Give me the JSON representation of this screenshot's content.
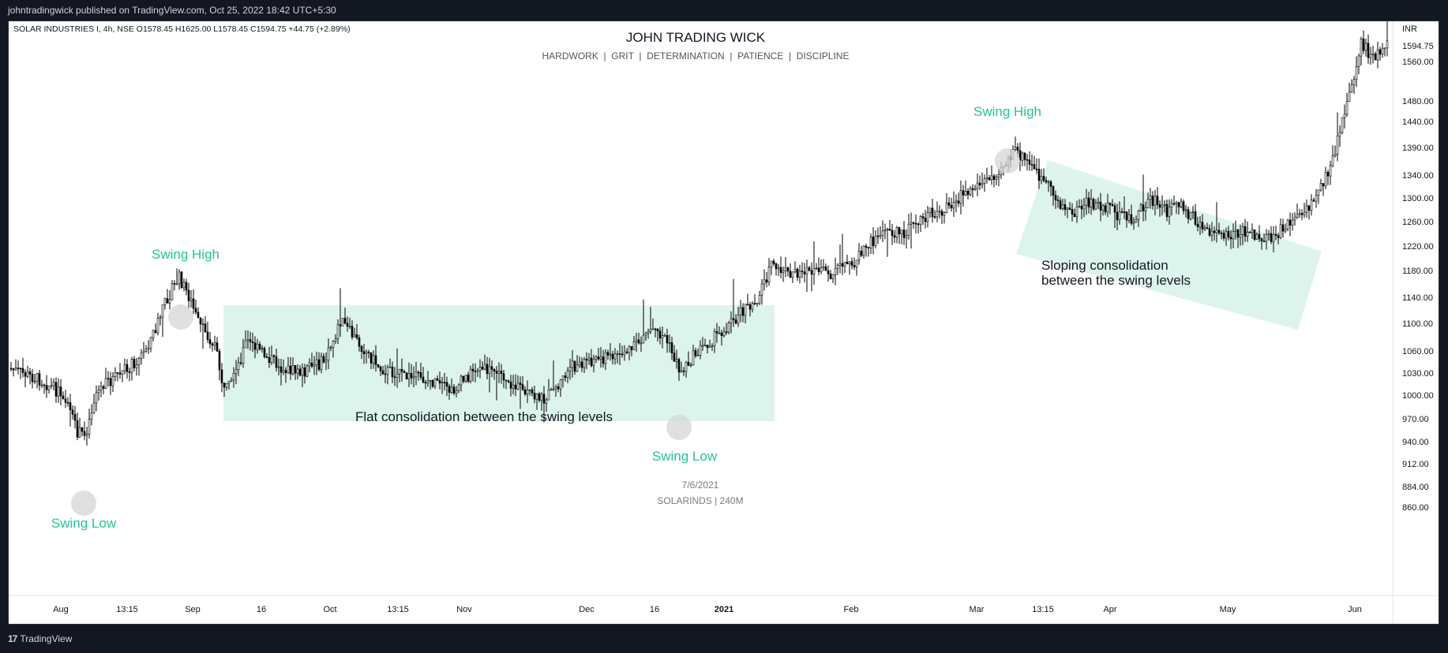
{
  "publish_bar": "johntradingwick published on TradingView.com, Oct 25, 2022 18:42 UTC+5:30",
  "footer": {
    "logo_mark": "17",
    "logo_text": "TradingView"
  },
  "header": {
    "symbol_info": "SOLAR INDUSTRIES I, 4h, NSE  O1578.45  H1625.00  L1578.45  C1594.75  +44.75 (+2.89%)",
    "title": "JOHN TRADING WICK",
    "subtitle": "HARDWORK  |  GRIT  |  DETERMINATION  |  PATIENCE  |  DISCIPLINE"
  },
  "watermark": {
    "date": "7/6/2021",
    "symbol": "SOLARINDS | 240M"
  },
  "colors": {
    "annotation": "#22c49a",
    "zone_fill": "#ddf4ec",
    "candle": "#000000",
    "marker": "#d6d6d6"
  },
  "chart_data": {
    "type": "candlestick",
    "currency": "INR",
    "y_ticks": [
      1594.75,
      1560.0,
      1480.0,
      1440.0,
      1390.0,
      1340.0,
      1300.0,
      1260.0,
      1220.0,
      1180.0,
      1140.0,
      1100.0,
      1060.0,
      1030.0,
      1000.0,
      970.0,
      940.0,
      912.0,
      884.0,
      860.0
    ],
    "x_ticks": [
      "Aug",
      "13:15",
      "Sep",
      "16",
      "Oct",
      "13:15",
      "Nov",
      "Dec",
      "16",
      "2021",
      "Feb",
      "Mar",
      "13:15",
      "Apr",
      "May",
      "Jun"
    ],
    "last_price": 1594.75,
    "key_points": [
      {
        "label": "Swing Low",
        "approx_price": 950
      },
      {
        "label": "Swing High",
        "approx_price": 1180
      },
      {
        "label": "Swing Low",
        "approx_price": 1040
      },
      {
        "label": "Swing High",
        "approx_price": 1400
      }
    ],
    "zones": [
      {
        "label": "Flat consolidation between the swing levels",
        "shape": "flat",
        "top_price": 1125,
        "bottom_price": 990
      },
      {
        "label": "Sloping consolidation\nbetween the swing levels",
        "shape": "sloping"
      }
    ]
  }
}
